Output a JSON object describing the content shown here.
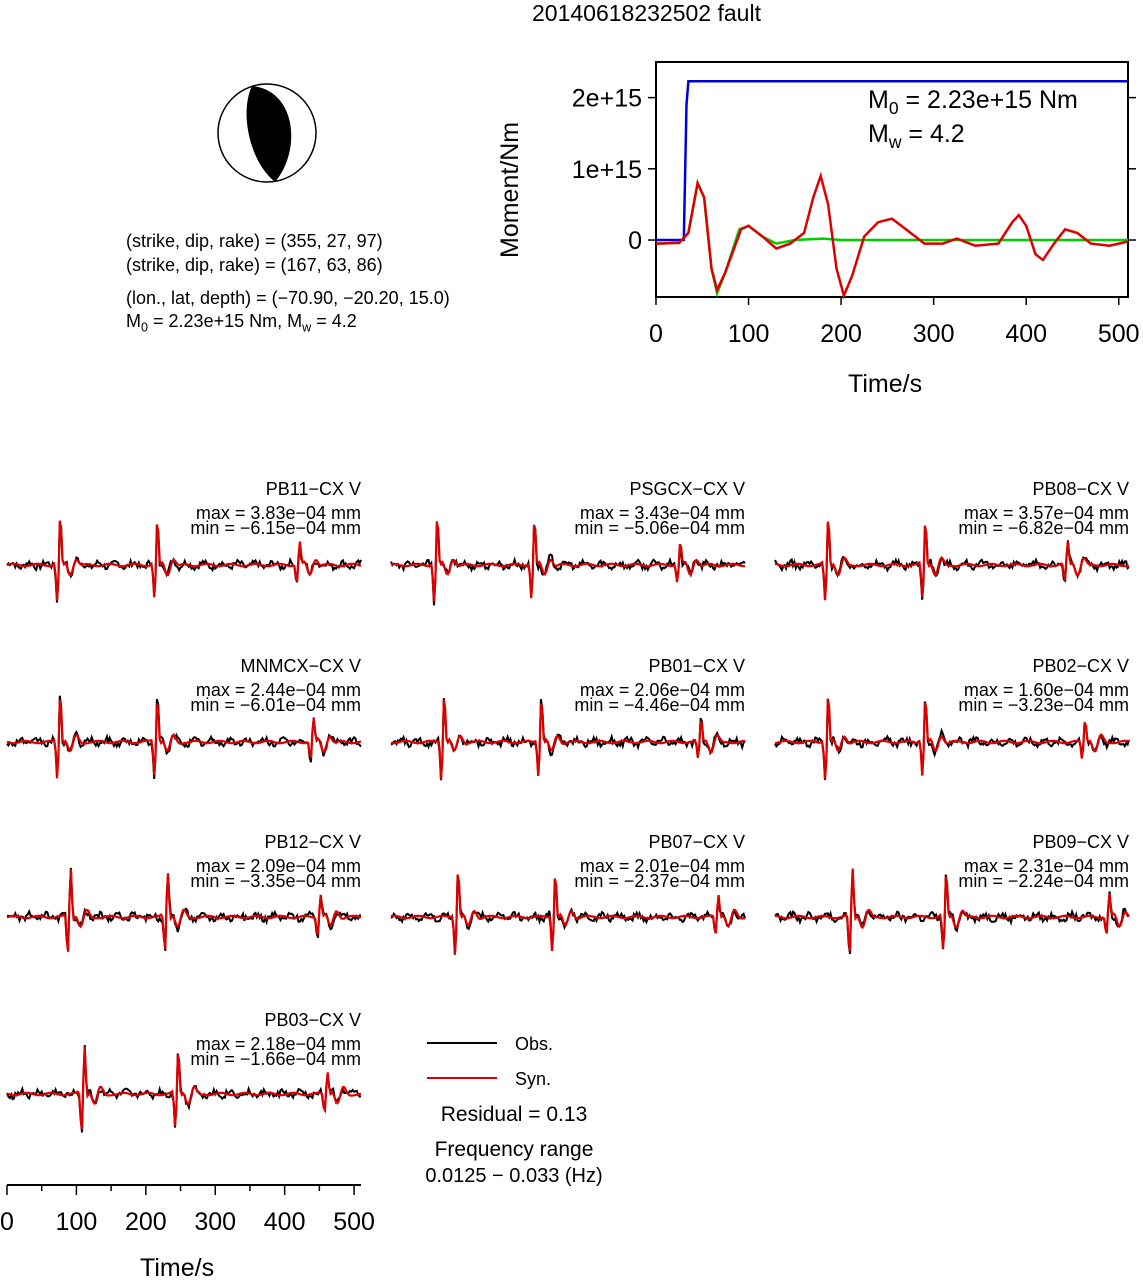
{
  "title": "20140618232502 fault",
  "focal_mechanism": {
    "plane1": "(strike, dip, rake) = (355, 27, 97)",
    "plane2": "(strike, dip, rake) = (167, 63, 86)",
    "location": "(lon., lat, depth) = (−70.90, −20.20, 15.0)",
    "m0_text": "M",
    "m0_sub": "0",
    "m0_value": " = 2.23e+15 Nm, M",
    "mw_sub": "w",
    "mw_value": " = 4.2"
  },
  "moment_panel": {
    "ylabel": "Moment/Nm",
    "xlabel": "Time/s",
    "m0_label": "M",
    "m0_sub": "0",
    "m0_value": " = 2.23e+15 Nm",
    "mw_label": "M",
    "mw_sub": "w",
    "mw_value": " = 4.2"
  },
  "legend": {
    "obs": "Obs.",
    "syn": "Syn.",
    "residual": "Residual = 0.13",
    "freq_title": "Frequency range",
    "freq_value": "0.0125 − 0.033 (Hz)"
  },
  "wave_axis": {
    "xlabel": "Time/s"
  },
  "colors": {
    "obs": "#000000",
    "syn": "#dd0000",
    "cumulative": "#0000dd",
    "source_green": "#00cc00"
  },
  "stations": [
    {
      "name": "PB11−CX V",
      "max": "max = 3.83e−04 mm",
      "min": "min = −6.15e−04 mm"
    },
    {
      "name": "PSGCX−CX V",
      "max": "max = 3.43e−04 mm",
      "min": "min = −5.06e−04 mm"
    },
    {
      "name": "PB08−CX V",
      "max": "max = 3.57e−04 mm",
      "min": "min = −6.82e−04 mm"
    },
    {
      "name": "MNMCX−CX V",
      "max": "max = 2.44e−04 mm",
      "min": "min = −6.01e−04 mm"
    },
    {
      "name": "PB01−CX V",
      "max": "max = 2.06e−04 mm",
      "min": "min = −4.46e−04 mm"
    },
    {
      "name": "PB02−CX V",
      "max": "max = 1.60e−04 mm",
      "min": "min = −3.23e−04 mm"
    },
    {
      "name": "PB12−CX V",
      "max": "max = 2.09e−04 mm",
      "min": "min = −3.35e−04 mm"
    },
    {
      "name": "PB07−CX V",
      "max": "max = 2.01e−04 mm",
      "min": "min = −2.37e−04 mm"
    },
    {
      "name": "PB09−CX V",
      "max": "max = 2.31e−04 mm",
      "min": "min = −2.24e−04 mm"
    },
    {
      "name": "PB03−CX V",
      "max": "max = 2.18e−04 mm",
      "min": "min = −1.66e−04 mm"
    }
  ],
  "chart_data": [
    {
      "type": "line",
      "title": "",
      "xlabel": "Time/s",
      "ylabel": "Moment/Nm",
      "xlim": [
        0,
        510
      ],
      "ylim": [
        -800000000000000.0,
        2500000000000000.0
      ],
      "x_ticks": [
        0,
        100,
        200,
        300,
        400,
        500
      ],
      "y_ticks": [
        0,
        1000000000000000.0,
        2000000000000000.0
      ],
      "y_tick_labels": [
        "0",
        "1e+15",
        "2e+15"
      ],
      "series": [
        {
          "color": "#0000dd",
          "points": [
            [
              0,
              0
            ],
            [
              30,
              0
            ],
            [
              33,
              1900000000000000.0
            ],
            [
              35,
              2230000000000000.0
            ],
            [
              510,
              2230000000000000.0
            ]
          ]
        },
        {
          "color": "#00cc00",
          "points": [
            [
              0,
              -50000000000000.0
            ],
            [
              25,
              -40000000000000.0
            ],
            [
              35,
              100000000000000.0
            ],
            [
              45,
              800000000000000.0
            ],
            [
              52,
              600000000000000.0
            ],
            [
              60,
              -400000000000000.0
            ],
            [
              66,
              -750000000000000.0
            ],
            [
              75,
              -450000000000000.0
            ],
            [
              90,
              150000000000000.0
            ],
            [
              100,
              200000000000000.0
            ],
            [
              115,
              50000000000000.0
            ],
            [
              130,
              -50000000000000.0
            ],
            [
              150,
              0.0
            ],
            [
              180,
              20000000000000.0
            ],
            [
              200,
              0.0
            ],
            [
              510,
              0.0
            ]
          ]
        },
        {
          "color": "#dd0000",
          "points": [
            [
              0,
              -50000000000000.0
            ],
            [
              25,
              -40000000000000.0
            ],
            [
              35,
              100000000000000.0
            ],
            [
              45,
              800000000000000.0
            ],
            [
              52,
              600000000000000.0
            ],
            [
              60,
              -400000000000000.0
            ],
            [
              66,
              -700000000000000.0
            ],
            [
              75,
              -450000000000000.0
            ],
            [
              92,
              150000000000000.0
            ],
            [
              100,
              200000000000000.0
            ],
            [
              115,
              50000000000000.0
            ],
            [
              130,
              -120000000000000.0
            ],
            [
              145,
              -50000000000000.0
            ],
            [
              160,
              100000000000000.0
            ],
            [
              170,
              600000000000000.0
            ],
            [
              178,
              900000000000000.0
            ],
            [
              186,
              500000000000000.0
            ],
            [
              195,
              -400000000000000.0
            ],
            [
              203,
              -780000000000000.0
            ],
            [
              212,
              -500000000000000.0
            ],
            [
              225,
              50000000000000.0
            ],
            [
              240,
              250000000000000.0
            ],
            [
              255,
              300000000000000.0
            ],
            [
              270,
              150000000000000.0
            ],
            [
              290,
              -50000000000000.0
            ],
            [
              310,
              -50000000000000.0
            ],
            [
              325,
              20000000000000.0
            ],
            [
              345,
              -80000000000000.0
            ],
            [
              370,
              -50000000000000.0
            ],
            [
              385,
              250000000000000.0
            ],
            [
              392,
              350000000000000.0
            ],
            [
              400,
              200000000000000.0
            ],
            [
              410,
              -200000000000000.0
            ],
            [
              418,
              -280000000000000.0
            ],
            [
              430,
              -50000000000000.0
            ],
            [
              442,
              150000000000000.0
            ],
            [
              455,
              100000000000000.0
            ],
            [
              470,
              -50000000000000.0
            ],
            [
              490,
              -80000000000000.0
            ],
            [
              510,
              -20000000000000.0
            ]
          ]
        }
      ]
    },
    {
      "type": "line",
      "title": "",
      "xlabel": "Time/s",
      "ylabel": "",
      "xlim": [
        0,
        510
      ],
      "x_ticks": [
        0,
        100,
        200,
        300,
        400,
        500
      ],
      "series": [
        {
          "name": "Obs.",
          "color": "#000000"
        },
        {
          "name": "Syn.",
          "color": "#dd0000"
        }
      ],
      "stations": [
        "PB11-CX V",
        "PSGCX-CX V",
        "PB08-CX V",
        "MNMCX-CX V",
        "PB01-CX V",
        "PB02-CX V",
        "PB12-CX V",
        "PB07-CX V",
        "PB09-CX V",
        "PB03-CX V"
      ],
      "arrival_times_s": [
        [
          75,
          215,
          420
        ],
        [
          65,
          205,
          415
        ],
        [
          75,
          215,
          420
        ],
        [
          75,
          215,
          440
        ],
        [
          75,
          215,
          445
        ],
        [
          75,
          215,
          445
        ],
        [
          90,
          230,
          450
        ],
        [
          95,
          235,
          470
        ],
        [
          110,
          245,
          480
        ],
        [
          110,
          245,
          460
        ]
      ]
    }
  ]
}
